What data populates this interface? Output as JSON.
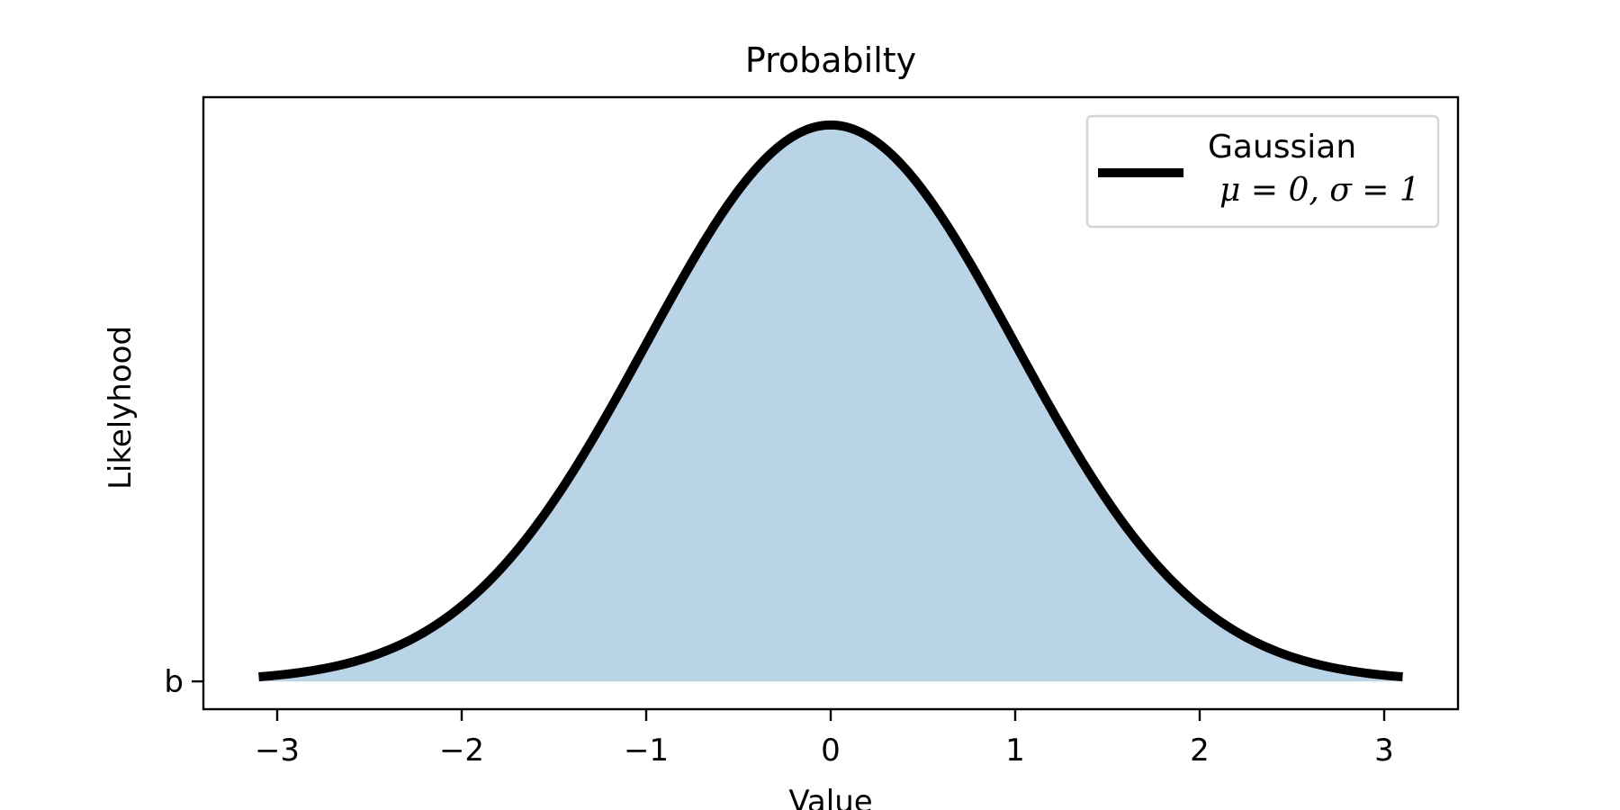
{
  "chart_data": {
    "type": "area",
    "title": "Probabilty",
    "xlabel": "Value",
    "ylabel": "Likelyhood",
    "xlim": [
      -3.4,
      3.4
    ],
    "ylim": [
      -0.01995,
      0.41885
    ],
    "x_ticks": [
      -3,
      -2,
      -1,
      0,
      1,
      2,
      3
    ],
    "x_tick_labels": [
      "−3",
      "−2",
      "−1",
      "0",
      "1",
      "2",
      "3"
    ],
    "y_ticks": [
      0
    ],
    "y_tick_labels": [
      "b"
    ],
    "grid": false,
    "legend_position": "top-right",
    "series": [
      {
        "name": "Gaussian\nμ = 0, σ = 1",
        "distribution": "normal",
        "mu": 0,
        "sigma": 1,
        "x_range": [
          -3.1,
          3.1
        ],
        "x": [
          -3.1,
          -3.0,
          -2.5,
          -2.0,
          -1.5,
          -1.0,
          -0.5,
          0.0,
          0.5,
          1.0,
          1.5,
          2.0,
          2.5,
          3.0,
          3.1
        ],
        "y": [
          0.0033,
          0.0044,
          0.0175,
          0.054,
          0.1295,
          0.242,
          0.3521,
          0.3989,
          0.3521,
          0.242,
          0.1295,
          0.054,
          0.0175,
          0.0044,
          0.0033
        ],
        "line_color": "#000000",
        "fill_color": "#bad4e7"
      }
    ]
  }
}
